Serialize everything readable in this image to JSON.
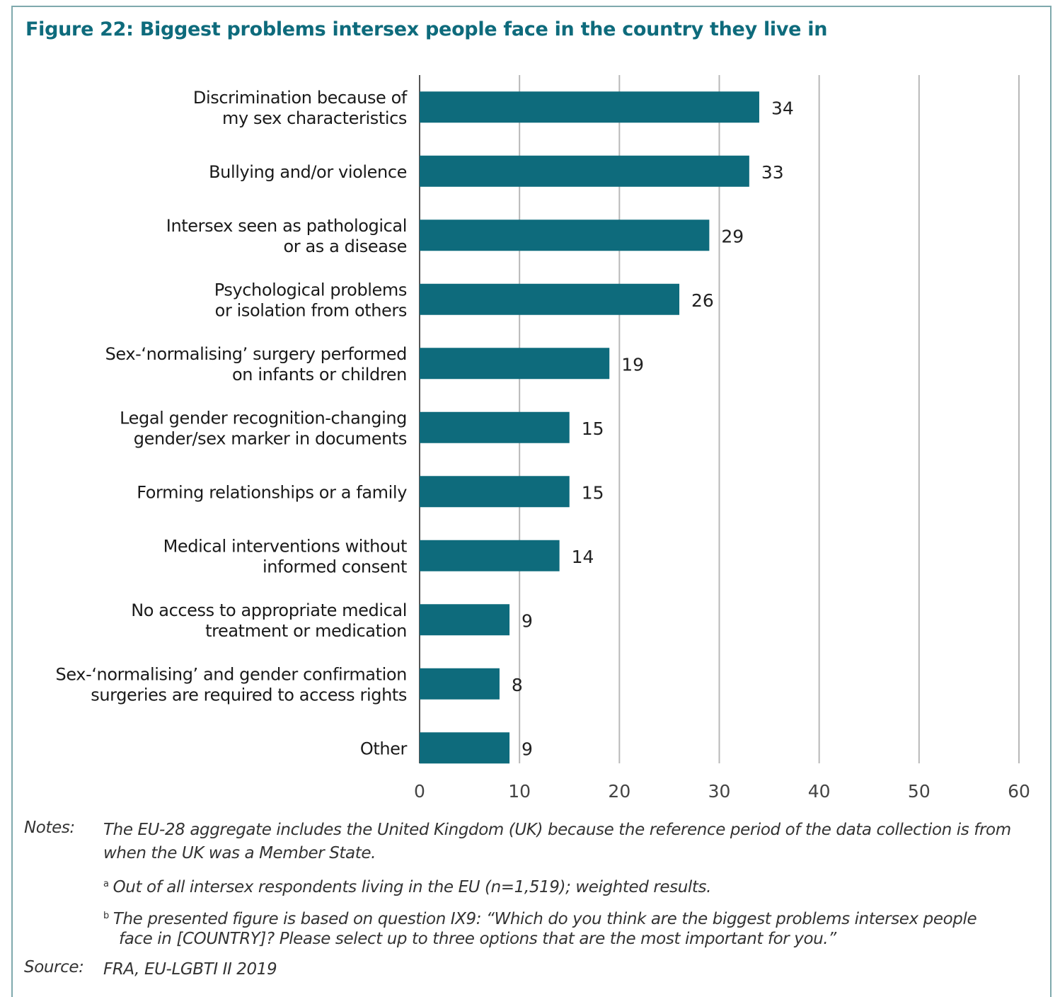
{
  "figure_title": "Figure 22: Biggest problems intersex people face in the country they live in",
  "chart_data": {
    "type": "bar",
    "orientation": "horizontal",
    "categories": [
      [
        "Discrimination because of",
        "my sex characteristics"
      ],
      [
        "Bullying and/or violence"
      ],
      [
        "Intersex seen as pathological",
        "or as a disease"
      ],
      [
        "Psychological problems",
        "or isolation from others"
      ],
      [
        "Sex-‘normalising’ surgery performed",
        "on infants or children"
      ],
      [
        "Legal gender recognition-changing",
        "gender/sex marker in documents"
      ],
      [
        "Forming relationships or a family"
      ],
      [
        "Medical interventions without",
        "informed consent"
      ],
      [
        "No access to appropriate medical",
        "treatment or medication"
      ],
      [
        "Sex-‘normalising’ and gender confirmation",
        "surgeries are required to access rights"
      ],
      [
        "Other"
      ]
    ],
    "values": [
      34,
      33,
      29,
      26,
      19,
      15,
      15,
      14,
      9,
      8,
      9
    ],
    "xlim": [
      0,
      60
    ],
    "xticks": [
      0,
      10,
      20,
      30,
      40,
      50,
      60
    ],
    "grid": true,
    "bar_color": "#0e6b7c"
  },
  "notes": {
    "label": "Notes:",
    "line1": "The EU-28 aggregate includes the United Kingdom (UK) because the reference period of the data collection is from",
    "line2": "when the UK was a Member State.",
    "a_mark": "a",
    "a_text": "Out of all intersex respondents living in the EU (n=1,519); weighted results.",
    "b_mark": "b",
    "b_line1": "The presented figure is based on question IX9: “Which do you think are the biggest problems intersex people",
    "b_line2": "face in [COUNTRY]? Please select up to three options that are the most important for you.”"
  },
  "source": {
    "label": "Source:",
    "text": "FRA, EU-LGBTI II 2019"
  }
}
